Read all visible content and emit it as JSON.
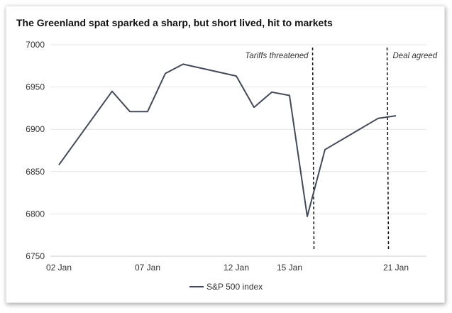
{
  "chart_data": {
    "type": "line",
    "title": "The Greenland spat sparked a sharp, but short lived, hit to markets",
    "xlabel": "",
    "ylabel": "",
    "ylim": [
      6750,
      7000
    ],
    "yticks": [
      6750,
      6800,
      6850,
      6900,
      6950,
      7000
    ],
    "x_ticks": [
      {
        "label": "02 Jan",
        "day": 2
      },
      {
        "label": "07 Jan",
        "day": 7
      },
      {
        "label": "12 Jan",
        "day": 12
      },
      {
        "label": "15 Jan",
        "day": 15
      },
      {
        "label": "21 Jan",
        "day": 21
      }
    ],
    "grid": "horizontal",
    "legend": "bottom",
    "series": [
      {
        "name": "S&P 500 index",
        "color": "#434a57",
        "points": [
          {
            "day": 2,
            "value": 6858
          },
          {
            "day": 5,
            "value": 6945
          },
          {
            "day": 6,
            "value": 6921
          },
          {
            "day": 7,
            "value": 6921
          },
          {
            "day": 8,
            "value": 6966
          },
          {
            "day": 9,
            "value": 6977
          },
          {
            "day": 12,
            "value": 6963
          },
          {
            "day": 13,
            "value": 6926
          },
          {
            "day": 14,
            "value": 6944
          },
          {
            "day": 15,
            "value": 6940
          },
          {
            "day": 16,
            "value": 6797
          },
          {
            "day": 17,
            "value": 6876
          },
          {
            "day": 20,
            "value": 6913
          },
          {
            "day": 21,
            "value": 6916
          }
        ]
      }
    ],
    "annotations": [
      {
        "label": "Tariffs threatened",
        "x": 16.3
      },
      {
        "label": "Deal agreed",
        "x": 20.5
      }
    ]
  }
}
